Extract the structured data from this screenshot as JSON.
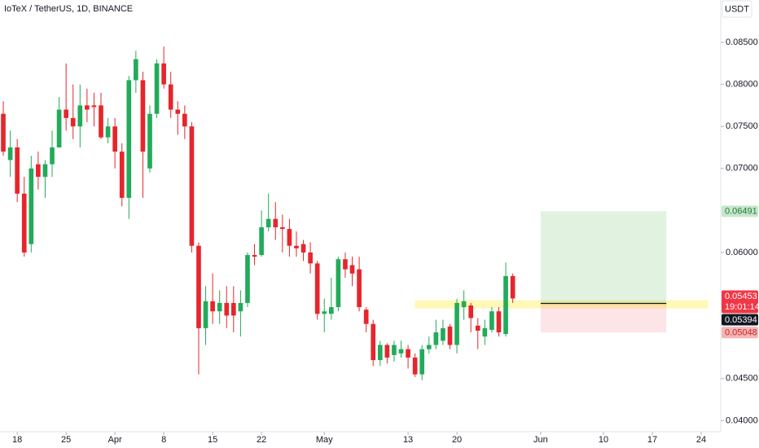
{
  "chart_data": {
    "type": "candlestick",
    "title": "IoTeX / TetherUS, 1D, BINANCE",
    "currency": "USDT",
    "up_color": "#22ab5a",
    "down_color": "#e5262c",
    "open": [
      0.0765,
      0.071,
      0.0725,
      0.067,
      0.061,
      0.0705,
      0.069,
      0.0705,
      0.0725,
      0.077,
      0.076,
      0.075,
      0.0775,
      0.0775,
      0.0775,
      0.0737,
      0.075,
      0.072,
      0.0665,
      0.0805,
      0.0805,
      0.07,
      0.0765,
      0.0825,
      0.08,
      0.077,
      0.0765,
      0.075,
      0.0608,
      0.051,
      0.0542,
      0.053,
      0.054,
      0.054,
      0.053,
      0.054,
      0.0597,
      0.0597,
      0.063,
      0.064,
      0.063,
      0.0628,
      0.0608,
      0.061,
      0.06,
      0.0587,
      0.0527,
      0.0527,
      0.0535,
      0.0592,
      0.0585,
      0.058,
      0.0532,
      0.0515,
      0.0472,
      0.049,
      0.0478,
      0.048,
      0.0485,
      0.0475,
      0.0455,
      0.0485,
      0.049,
      0.0495,
      0.0512,
      0.049,
      0.0535,
      0.0537,
      0.0513,
      0.05,
      0.0508,
      0.053,
      0.0503,
      0.0572
    ],
    "high": [
      0.078,
      0.0745,
      0.0735,
      0.069,
      0.0715,
      0.072,
      0.071,
      0.0745,
      0.0785,
      0.0825,
      0.08,
      0.08,
      0.0795,
      0.079,
      0.079,
      0.076,
      0.076,
      0.073,
      0.081,
      0.084,
      0.0815,
      0.0775,
      0.083,
      0.0845,
      0.0815,
      0.078,
      0.0775,
      0.0755,
      0.0612,
      0.056,
      0.0575,
      0.0555,
      0.056,
      0.056,
      0.0555,
      0.06,
      0.061,
      0.065,
      0.067,
      0.066,
      0.0645,
      0.064,
      0.0625,
      0.0615,
      0.0612,
      0.059,
      0.0545,
      0.057,
      0.0595,
      0.06,
      0.0595,
      0.0595,
      0.0535,
      0.052,
      0.0495,
      0.0492,
      0.0495,
      0.0495,
      0.049,
      0.048,
      0.049,
      0.05,
      0.052,
      0.052,
      0.0515,
      0.0545,
      0.0555,
      0.054,
      0.0522,
      0.052,
      0.0535,
      0.0535,
      0.0588,
      0.0575
    ],
    "low": [
      0.0715,
      0.069,
      0.066,
      0.0595,
      0.06,
      0.0675,
      0.0665,
      0.069,
      0.0725,
      0.0745,
      0.0735,
      0.0725,
      0.0755,
      0.075,
      0.0735,
      0.073,
      0.07,
      0.0655,
      0.064,
      0.079,
      0.0665,
      0.0695,
      0.076,
      0.0795,
      0.076,
      0.074,
      0.0735,
      0.06,
      0.0455,
      0.049,
      0.0515,
      0.0515,
      0.051,
      0.0505,
      0.05,
      0.0535,
      0.0585,
      0.0595,
      0.0625,
      0.0615,
      0.06,
      0.0595,
      0.0595,
      0.059,
      0.0575,
      0.052,
      0.0505,
      0.052,
      0.053,
      0.057,
      0.056,
      0.053,
      0.0505,
      0.0465,
      0.0465,
      0.0468,
      0.047,
      0.0475,
      0.0462,
      0.0452,
      0.0448,
      0.048,
      0.0485,
      0.049,
      0.0485,
      0.048,
      0.052,
      0.0505,
      0.0485,
      0.049,
      0.0505,
      0.05,
      0.05,
      0.054
    ],
    "close": [
      0.072,
      0.0725,
      0.067,
      0.06,
      0.07,
      0.069,
      0.0705,
      0.0725,
      0.077,
      0.076,
      0.075,
      0.0775,
      0.077,
      0.0773,
      0.0737,
      0.075,
      0.072,
      0.0665,
      0.0805,
      0.083,
      0.072,
      0.0765,
      0.0825,
      0.08,
      0.077,
      0.0765,
      0.075,
      0.0608,
      0.051,
      0.0542,
      0.053,
      0.054,
      0.0525,
      0.0525,
      0.054,
      0.0597,
      0.0595,
      0.063,
      0.064,
      0.063,
      0.0628,
      0.0608,
      0.0605,
      0.06,
      0.0587,
      0.0527,
      0.053,
      0.0535,
      0.0592,
      0.058,
      0.0575,
      0.0535,
      0.0515,
      0.0472,
      0.049,
      0.0475,
      0.049,
      0.0485,
      0.0475,
      0.0455,
      0.0485,
      0.049,
      0.0505,
      0.051,
      0.049,
      0.054,
      0.0542,
      0.0522,
      0.0507,
      0.051,
      0.053,
      0.0505,
      0.0572,
      0.05453
    ],
    "xlim": [
      -0.47,
      102.8
    ],
    "xticks": [
      {
        "value": 2,
        "label": "18"
      },
      {
        "value": 9,
        "label": "25"
      },
      {
        "value": 16,
        "label": "Apr"
      },
      {
        "value": 23,
        "label": "8"
      },
      {
        "value": 30,
        "label": "15"
      },
      {
        "value": 37,
        "label": "22"
      },
      {
        "value": 46,
        "label": "May"
      },
      {
        "value": 58,
        "label": "13"
      },
      {
        "value": 65,
        "label": "20"
      },
      {
        "value": 77,
        "label": "Jun"
      },
      {
        "value": 86,
        "label": "10"
      },
      {
        "value": 93,
        "label": "17"
      },
      {
        "value": 100,
        "label": "24"
      }
    ],
    "ylim": [
      0.03868,
      0.09004
    ],
    "yticks": [
      {
        "value": 0.085,
        "label": "0.08500"
      },
      {
        "value": 0.08,
        "label": "0.08000"
      },
      {
        "value": 0.075,
        "label": "0.07500"
      },
      {
        "value": 0.07,
        "label": "0.07000"
      },
      {
        "value": 0.06,
        "label": "0.06000"
      },
      {
        "value": 0.045,
        "label": "0.04500"
      },
      {
        "value": 0.04,
        "label": "0.04000"
      }
    ],
    "zone": {
      "start": 59,
      "end": 101,
      "low": 0.05335,
      "high": 0.05432,
      "color": "#fff59d"
    },
    "position": {
      "start": 77,
      "end": 95,
      "entry": 0.05394,
      "target": 0.06491,
      "stop": 0.05048
    },
    "price_labels": [
      {
        "value": 0.06491,
        "label": "0.06491",
        "color": "#c8e6c9",
        "text_color": "#1b7f3a"
      },
      {
        "value": 0.05453,
        "label": "0.05453",
        "sub": "19:01:14",
        "color": "#f23645",
        "text_color": "#ffffff"
      },
      {
        "value": 0.05394,
        "label": "0.05394",
        "color": "#131722",
        "text_color": "#ffffff"
      },
      {
        "value": 0.05048,
        "label": "0.05048",
        "color": "#f5b5b5",
        "text_color": "#c62828"
      }
    ]
  }
}
